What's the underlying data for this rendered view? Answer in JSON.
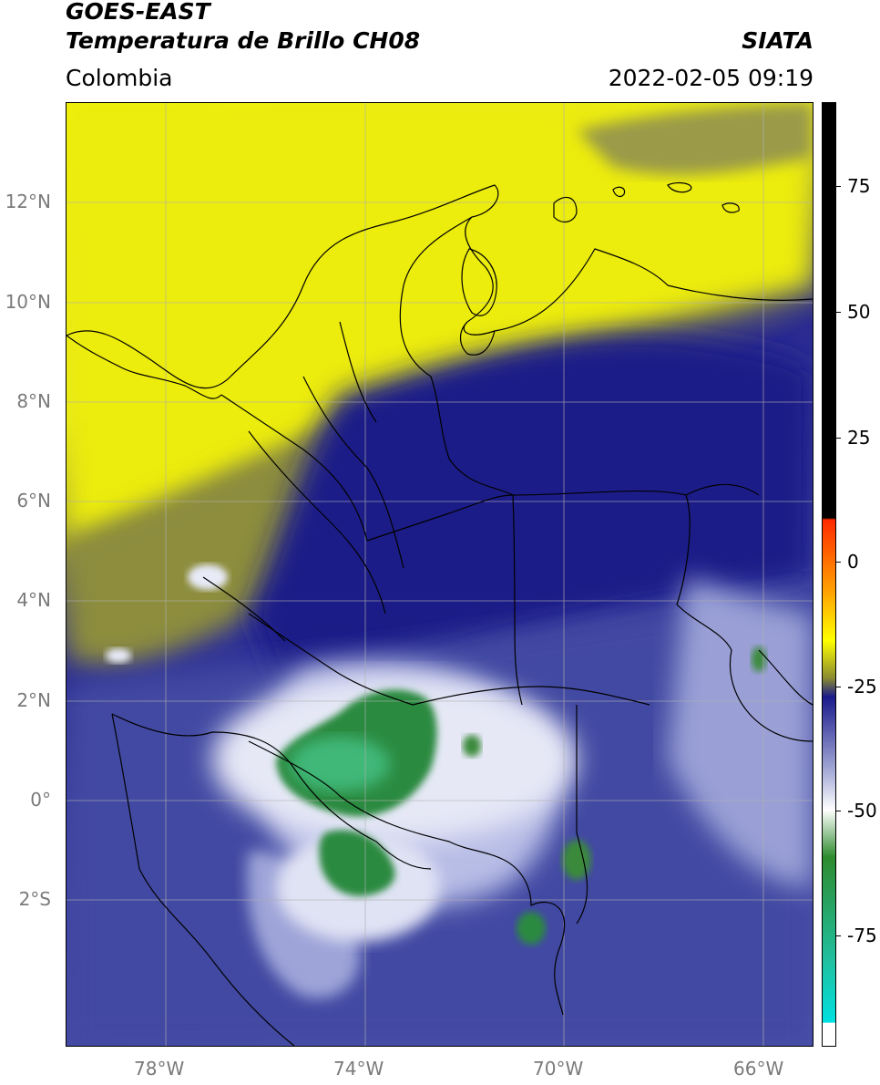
{
  "header": {
    "title_line1": "GOES-EAST",
    "title_line2": "Temperatura de Brillo CH08",
    "brand": "SIATA",
    "region": "Colombia",
    "timestamp": "2022-02-05 09:19"
  },
  "map": {
    "lat_labels": [
      "12°N",
      "10°N",
      "8°N",
      "6°N",
      "4°N",
      "2°N",
      "0°",
      "2°S"
    ],
    "lon_labels": [
      "78°W",
      "74°W",
      "70°W",
      "66°W"
    ],
    "extent": {
      "lon_min": -79.5,
      "lon_max": -64.5,
      "lat_min": -5,
      "lat_max": 14
    }
  },
  "colorbar": {
    "ticks": [
      "75",
      "50",
      "25",
      "0",
      "-25",
      "-50",
      "-75"
    ],
    "range": [
      -97,
      90
    ],
    "colors": {
      "black": "#000000",
      "red": "#ff2a00",
      "orange": "#ffa500",
      "yellow": "#ffff00",
      "olive": "#8a8a30",
      "navy": "#1a1a8c",
      "lavender": "#a8aed8",
      "white": "#ffffff",
      "green": "#2e8b2e",
      "teal": "#20c0a0",
      "cyan": "#00e0e0"
    }
  }
}
